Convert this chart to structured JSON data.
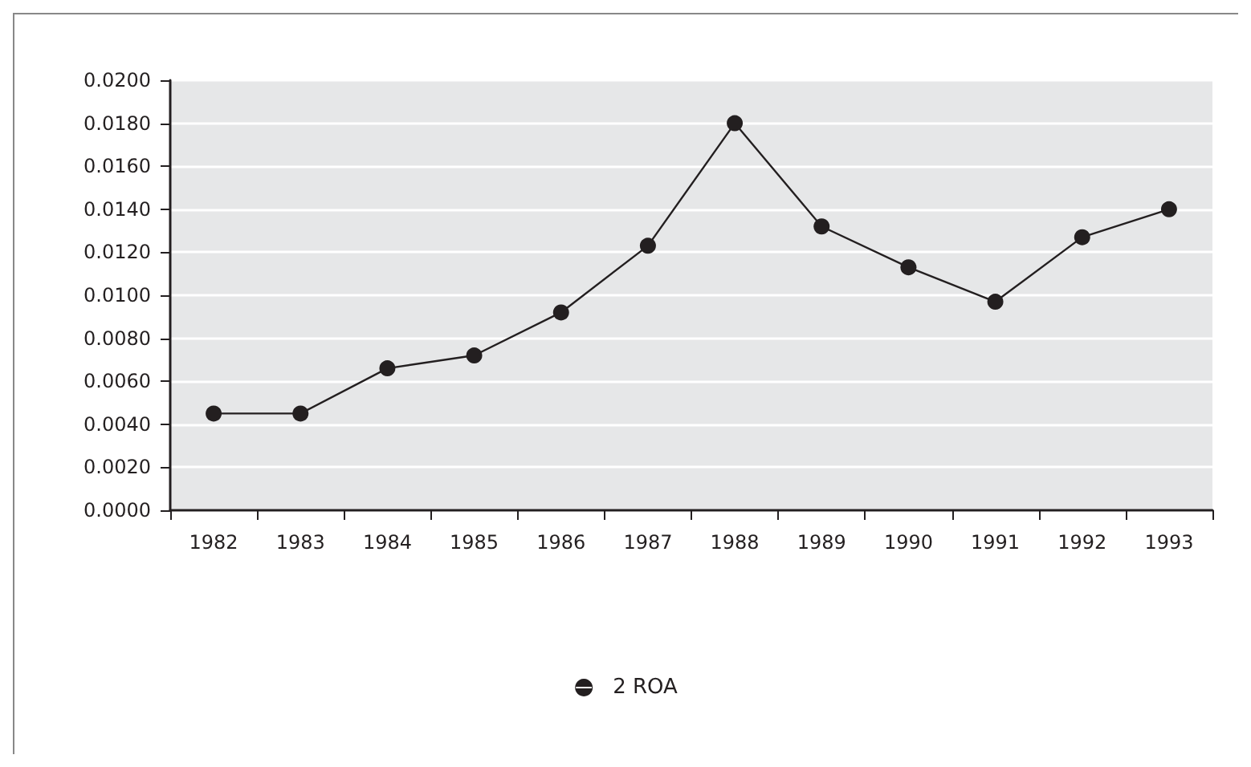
{
  "chart_data": {
    "type": "line",
    "categories": [
      "1982",
      "1983",
      "1984",
      "1985",
      "1986",
      "1987",
      "1988",
      "1989",
      "1990",
      "1991",
      "1992",
      "1993"
    ],
    "series": [
      {
        "name": "2 ROA",
        "color": "#231f20",
        "values": [
          0.0045,
          0.0045,
          0.0066,
          0.0072,
          0.0092,
          0.0123,
          0.018,
          0.0132,
          0.0113,
          0.0097,
          0.0127,
          0.014
        ]
      }
    ],
    "ylim": [
      0,
      0.02
    ],
    "yticks": [
      {
        "value": 0,
        "label": "0.0000"
      },
      {
        "value": 0.002,
        "label": "0.0020"
      },
      {
        "value": 0.004,
        "label": "0.0040"
      },
      {
        "value": 0.006,
        "label": "0.0060"
      },
      {
        "value": 0.008,
        "label": "0.0080"
      },
      {
        "value": 0.01,
        "label": "0.0100"
      },
      {
        "value": 0.012,
        "label": "0.0120"
      },
      {
        "value": 0.014,
        "label": "0.0140"
      },
      {
        "value": 0.016,
        "label": "0.0160"
      },
      {
        "value": 0.018,
        "label": "0.0180"
      },
      {
        "value": 0.02,
        "label": "0.0200"
      }
    ],
    "grid": "y",
    "legend": "bottom",
    "marker": "circle",
    "line_style": "solid"
  }
}
